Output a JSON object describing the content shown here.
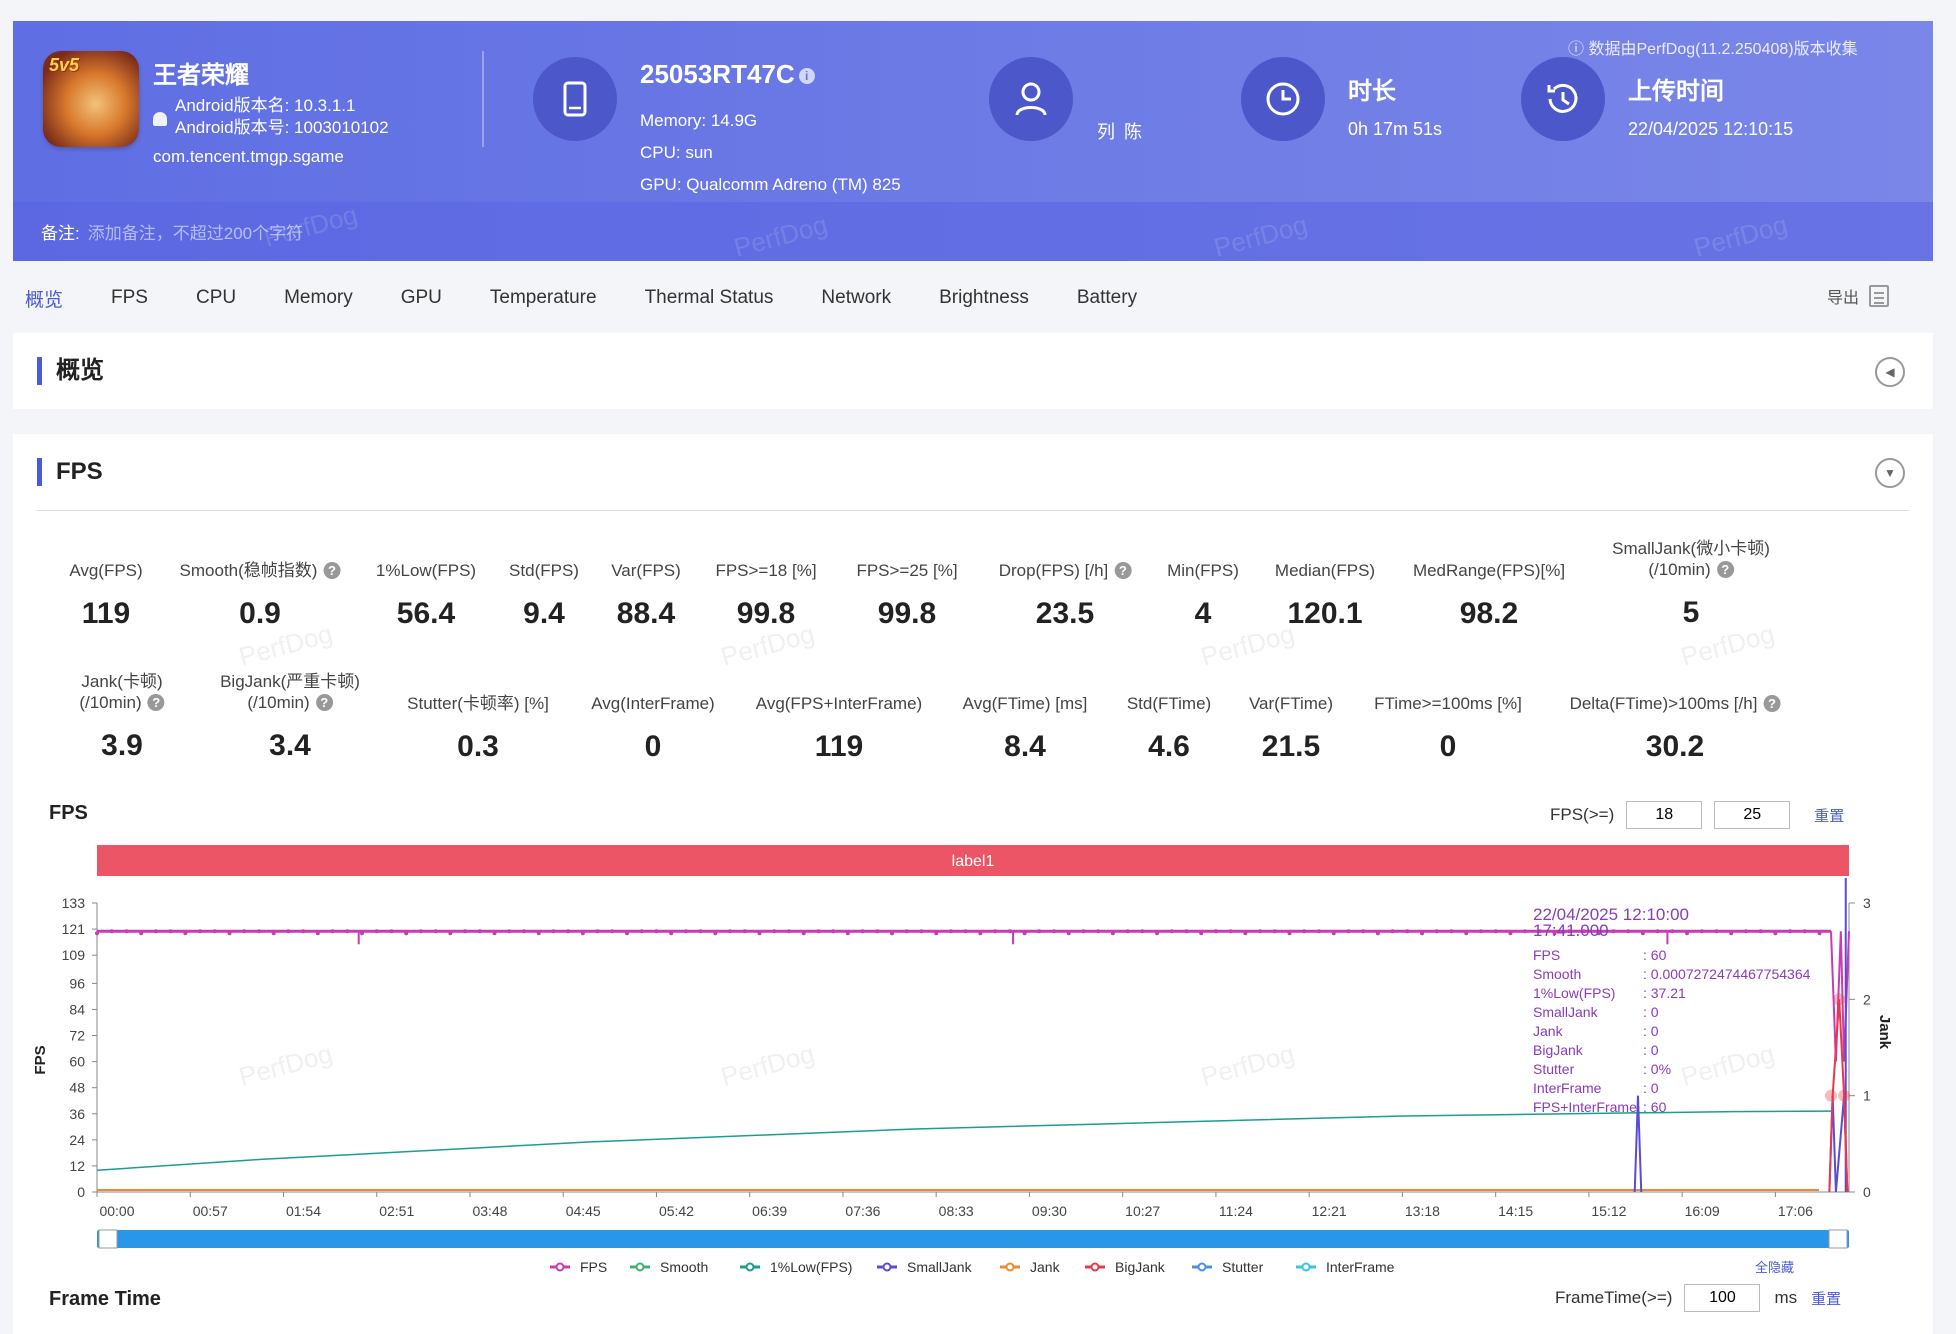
{
  "header": {
    "app": {
      "icon_badge": "5v5",
      "name": "王者荣耀",
      "version_name": "Android版本名: 10.3.1.1",
      "version_code": "Android版本号: 1003010102",
      "package": "com.tencent.tmgp.sgame"
    },
    "device": {
      "name": "25053RT47C",
      "memory": "Memory: 14.9G",
      "cpu": "CPU: sun",
      "gpu": "GPU: Qualcomm Adreno (TM) 825"
    },
    "user": {
      "name": "列 陈"
    },
    "duration": {
      "title": "时长",
      "value": "0h 17m 51s"
    },
    "upload": {
      "title": "上传时间",
      "value": "22/04/2025 12:10:15"
    },
    "collect_note": "数据由PerfDog(11.2.250408)版本收集",
    "note_label": "备注:",
    "note_placeholder": "添加备注，不超过200个字符"
  },
  "tabs": [
    "概览",
    "FPS",
    "CPU",
    "Memory",
    "GPU",
    "Temperature",
    "Thermal Status",
    "Network",
    "Brightness",
    "Battery"
  ],
  "active_tab": 0,
  "export_label": "导出",
  "overview_title": "概览",
  "fps_section_title": "FPS",
  "metrics_row1": [
    {
      "label": "Avg(FPS)",
      "value": "119"
    },
    {
      "label": "Smooth(稳帧指数)",
      "value": "0.9"
    },
    {
      "label": "1%Low(FPS)",
      "value": "56.4"
    },
    {
      "label": "Std(FPS)",
      "value": "9.4"
    },
    {
      "label": "Var(FPS)",
      "value": "88.4"
    },
    {
      "label": "FPS>=18 [%]",
      "value": "99.8"
    },
    {
      "label": "FPS>=25 [%]",
      "value": "99.8"
    },
    {
      "label": "Drop(FPS) [/h]",
      "value": "23.5"
    },
    {
      "label": "Min(FPS)",
      "value": "4"
    },
    {
      "label": "Median(FPS)",
      "value": "120.1"
    },
    {
      "label": "MedRange(FPS)[%]",
      "value": "98.2"
    },
    {
      "label": "SmallJank(微小卡顿)",
      "label2": "(/10min)",
      "value": "5"
    }
  ],
  "metrics_row2": [
    {
      "label": "Jank(卡顿)",
      "label2": "(/10min)",
      "value": "3.9"
    },
    {
      "label": "BigJank(严重卡顿)",
      "label2": "(/10min)",
      "value": "3.4"
    },
    {
      "label": "Stutter(卡顿率) [%]",
      "value": "0.3"
    },
    {
      "label": "Avg(InterFrame)",
      "value": "0"
    },
    {
      "label": "Avg(FPS+InterFrame)",
      "value": "119"
    },
    {
      "label": "Avg(FTime) [ms]",
      "value": "8.4"
    },
    {
      "label": "Std(FTime)",
      "value": "4.6"
    },
    {
      "label": "Var(FTime)",
      "value": "21.5"
    },
    {
      "label": "FTime>=100ms [%]",
      "value": "0"
    },
    {
      "label": "Delta(FTime)>100ms [/h]",
      "value": "30.2"
    }
  ],
  "fps_chart_header": {
    "title": "FPS",
    "threshold_label": "FPS(>=)",
    "threshold_1": "18",
    "threshold_2": "25",
    "reset": "重置",
    "label_band": "label1",
    "hide_all": "全隐藏"
  },
  "frame_time_header": {
    "title": "Frame Time",
    "threshold_label": "FrameTime(>=)",
    "threshold_value": "100",
    "unit": "ms",
    "reset": "重置"
  },
  "tooltip": {
    "date": "22/04/2025 12:10:00",
    "time": "17:41.000",
    "rows": [
      {
        "k": "FPS",
        "v": ": 60"
      },
      {
        "k": "Smooth",
        "v": ": 0.0007272474467754364"
      },
      {
        "k": "1%Low(FPS)",
        "v": ": 37.21"
      },
      {
        "k": "SmallJank",
        "v": ": 0"
      },
      {
        "k": "Jank",
        "v": ": 0"
      },
      {
        "k": "BigJank",
        "v": ": 0"
      },
      {
        "k": "Stutter",
        "v": ": 0%"
      },
      {
        "k": "InterFrame",
        "v": ": 0"
      },
      {
        "k": "FPS+InterFrame",
        "v": ": 60"
      }
    ]
  },
  "watermark_text": "PerfDog",
  "colors": {
    "fps": "#c93bb5",
    "smooth": "#3cb371",
    "low1": "#1a9e8f",
    "smalljank": "#5a4bd6",
    "jank": "#f08a2e",
    "bigjank": "#e8384a",
    "stutter": "#4a90e2",
    "interframe": "#37c6e0",
    "label_band": "#eb5566",
    "accent": "#4a5bd9"
  },
  "chart_data": {
    "type": "line",
    "ylabel": "FPS",
    "y2label": "Jank",
    "y_ticks": [
      0,
      12,
      24,
      36,
      48,
      60,
      72,
      84,
      96,
      109,
      121,
      133
    ],
    "y2_ticks": [
      0,
      1,
      2,
      3
    ],
    "x_ticks": [
      "00:00",
      "00:57",
      "01:54",
      "02:51",
      "03:48",
      "04:45",
      "05:42",
      "06:39",
      "07:36",
      "08:33",
      "09:30",
      "10:27",
      "11:24",
      "12:21",
      "13:18",
      "14:15",
      "15:12",
      "16:09",
      "17:06"
    ],
    "ylim": [
      0,
      133
    ],
    "y2lim": [
      0,
      3
    ],
    "x_range_sec": [
      0,
      1071
    ],
    "legend": [
      "FPS",
      "Smooth",
      "1%Low(FPS)",
      "SmallJank",
      "Jank",
      "BigJank",
      "Stutter",
      "InterFrame"
    ],
    "series": [
      {
        "name": "FPS",
        "x_sec": [
          0,
          60,
          160,
          360,
          560,
          720,
          960,
          1040,
          1060,
          1063,
          1066,
          1068,
          1071
        ],
        "values": [
          120,
          120,
          120,
          120,
          120,
          120,
          120,
          120,
          120,
          60,
          120,
          60,
          120
        ],
        "dips": [
          {
            "x_sec": 160,
            "value": 114
          },
          {
            "x_sec": 560,
            "value": 114
          },
          {
            "x_sec": 960,
            "value": 114
          }
        ]
      },
      {
        "name": "1%Low(FPS)",
        "x_sec": [
          0,
          100,
          200,
          300,
          400,
          500,
          600,
          700,
          800,
          900,
          1000,
          1060
        ],
        "values": [
          10,
          15,
          19,
          23,
          26,
          29,
          31,
          33,
          35,
          36,
          37,
          37.2
        ]
      },
      {
        "name": "SmallJank",
        "x_sec": [
          940,
          942,
          944,
          1059,
          1061,
          1063,
          1068,
          1070
        ],
        "values": [
          0,
          1,
          0,
          0,
          1,
          0,
          1,
          0
        ]
      },
      {
        "name": "BigJank",
        "x_sec": [
          1059,
          1061,
          1065,
          1068,
          1070
        ],
        "values": [
          0,
          1,
          2,
          1,
          0
        ]
      }
    ]
  }
}
